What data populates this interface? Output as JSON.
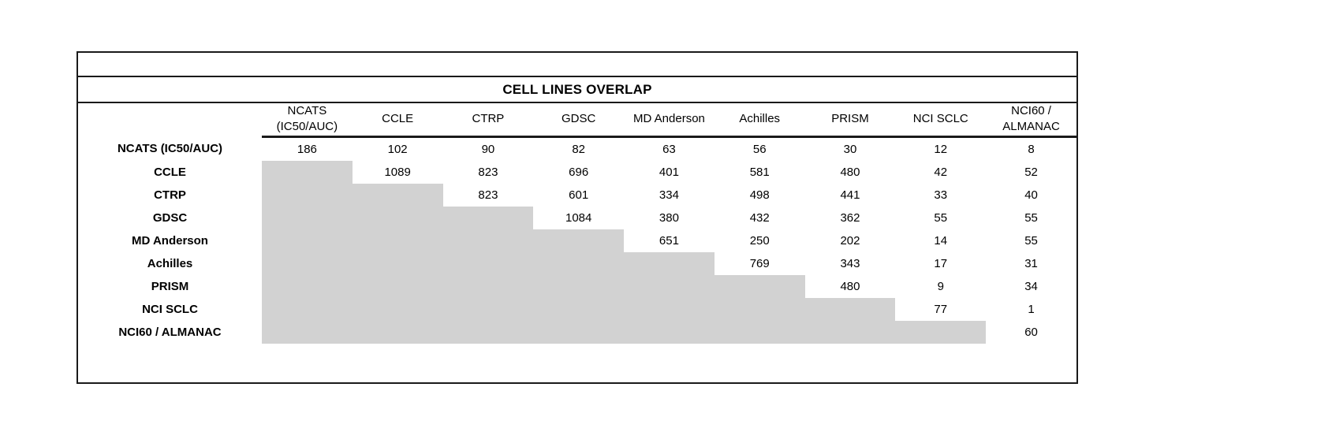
{
  "page": {
    "background_color": "#ffffff",
    "shade_color": "#d2d2d2",
    "border_color": "#1a1a1a"
  },
  "table": {
    "title": "CELL LINES OVERLAP",
    "corner_label": "",
    "column_headers": [
      {
        "lines": [
          "NCATS",
          "(IC50/AUC)"
        ]
      },
      {
        "lines": [
          "CCLE"
        ]
      },
      {
        "lines": [
          "CTRP"
        ]
      },
      {
        "lines": [
          "GDSC"
        ]
      },
      {
        "lines": [
          "MD Anderson"
        ]
      },
      {
        "lines": [
          "Achilles"
        ]
      },
      {
        "lines": [
          "PRISM"
        ]
      },
      {
        "lines": [
          "NCI SCLC"
        ]
      },
      {
        "lines": [
          "NCI60 /",
          "ALMANAC"
        ]
      }
    ],
    "row_headers": [
      "NCATS (IC50/AUC)",
      "CCLE",
      "CTRP",
      "GDSC",
      "MD Anderson",
      "Achilles",
      "PRISM",
      "NCI SCLC",
      "NCI60 / ALMANAC"
    ]
  },
  "chart_data": {
    "type": "table",
    "title": "CELL LINES OVERLAP",
    "columns": [
      "NCATS (IC50/AUC)",
      "CCLE",
      "CTRP",
      "GDSC",
      "MD Anderson",
      "Achilles",
      "PRISM",
      "NCI SCLC",
      "NCI60 / ALMANAC"
    ],
    "rows": [
      "NCATS (IC50/AUC)",
      "CCLE",
      "CTRP",
      "GDSC",
      "MD Anderson",
      "Achilles",
      "PRISM",
      "NCI SCLC",
      "NCI60 / ALMANAC"
    ],
    "matrix": [
      [
        186,
        102,
        90,
        82,
        63,
        56,
        30,
        12,
        8
      ],
      [
        null,
        1089,
        823,
        696,
        401,
        581,
        480,
        42,
        52
      ],
      [
        null,
        null,
        823,
        601,
        334,
        498,
        441,
        33,
        40
      ],
      [
        null,
        null,
        null,
        1084,
        380,
        432,
        362,
        55,
        55
      ],
      [
        null,
        null,
        null,
        null,
        651,
        250,
        202,
        14,
        55
      ],
      [
        null,
        null,
        null,
        null,
        null,
        769,
        343,
        17,
        31
      ],
      [
        null,
        null,
        null,
        null,
        null,
        null,
        480,
        9,
        34
      ],
      [
        null,
        null,
        null,
        null,
        null,
        null,
        null,
        77,
        1
      ],
      [
        null,
        null,
        null,
        null,
        null,
        null,
        null,
        null,
        60
      ]
    ],
    "layout_notes": {
      "diagonal_values_bold": true,
      "lower_triangle": "solid gray shading, no values",
      "upper_triangle": "pairwise overlap counts"
    }
  }
}
